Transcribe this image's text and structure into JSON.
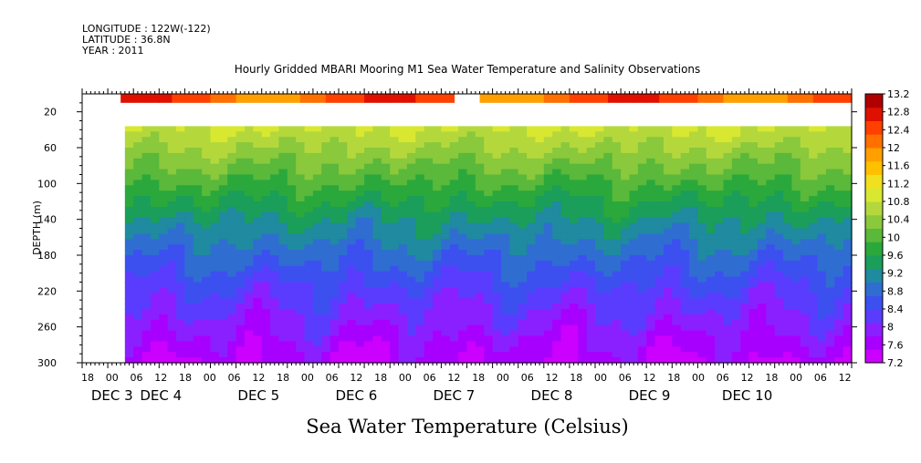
{
  "header": {
    "longitude": "LONGITUDE : 122W(-122)",
    "latitude": "LATITUDE : 36.8N",
    "year": "YEAR : 2011"
  },
  "chart_data": {
    "type": "heatmap",
    "title": "Hourly Gridded MBARI Mooring M1 Sea Water Temperature and Salinity Observations",
    "xlabel": "Sea Water Temperature (Celsius)",
    "ylabel": "DEPTH (m)",
    "ylim": [
      300,
      0
    ],
    "y_ticks": [
      20,
      60,
      100,
      140,
      180,
      220,
      260,
      300
    ],
    "x_hour_ticks": [
      "18",
      "00",
      "06",
      "12",
      "18",
      "00",
      "06",
      "12",
      "18",
      "00",
      "06",
      "12",
      "18",
      "00",
      "06",
      "12",
      "18",
      "00",
      "06",
      "12",
      "18",
      "00",
      "06",
      "12",
      "18",
      "00",
      "06",
      "12",
      "18",
      "00",
      "06",
      "12"
    ],
    "x_day_labels": [
      {
        "label": "DEC 3",
        "hour_index": 1
      },
      {
        "label": "DEC 4",
        "hour_index": 3
      },
      {
        "label": "DEC 5",
        "hour_index": 7
      },
      {
        "label": "DEC 6",
        "hour_index": 11
      },
      {
        "label": "DEC 7",
        "hour_index": 15
      },
      {
        "label": "DEC 8",
        "hour_index": 19
      },
      {
        "label": "DEC 9",
        "hour_index": 23
      },
      {
        "label": "DEC 10",
        "hour_index": 27
      }
    ],
    "time_range_hours": [
      0,
      180
    ],
    "colorbar": {
      "labels": [
        "13.2",
        "12.8",
        "12.4",
        "12",
        "11.6",
        "11.2",
        "10.8",
        "10.4",
        "10",
        "9.6",
        "9.2",
        "8.8",
        "8.4",
        "8",
        "7.6",
        "7.2"
      ],
      "min": 7.2,
      "max": 13.2,
      "step": 0.2,
      "colors": [
        "#cc00ff",
        "#a800ff",
        "#8a20ff",
        "#5a3cff",
        "#3c50f0",
        "#2f6ed0",
        "#1f8aa0",
        "#1a9e5a",
        "#2aa83c",
        "#5ab83a",
        "#8ac83c",
        "#b4d83c",
        "#d8e830",
        "#f0e020",
        "#ffc000",
        "#ffa000",
        "#ff7000",
        "#ff4000",
        "#e01000",
        "#b00000"
      ]
    },
    "surface_layer": {
      "depth_range_m": [
        0,
        10
      ],
      "temperature_approx": 12.3,
      "data_gaps_hours": [
        [
          0,
          10
        ],
        [
          88,
          93
        ],
        [
          173,
          175
        ]
      ]
    },
    "missing_depth_range_m": [
      10,
      36
    ],
    "profile_by_depth": [
      {
        "depth": 40,
        "temperature": 10.8
      },
      {
        "depth": 60,
        "temperature": 10.5
      },
      {
        "depth": 100,
        "temperature": 9.9
      },
      {
        "depth": 140,
        "temperature": 9.3
      },
      {
        "depth": 180,
        "temperature": 8.8
      },
      {
        "depth": 220,
        "temperature": 8.3
      },
      {
        "depth": 260,
        "temperature": 7.9
      },
      {
        "depth": 300,
        "temperature": 7.5
      }
    ]
  }
}
